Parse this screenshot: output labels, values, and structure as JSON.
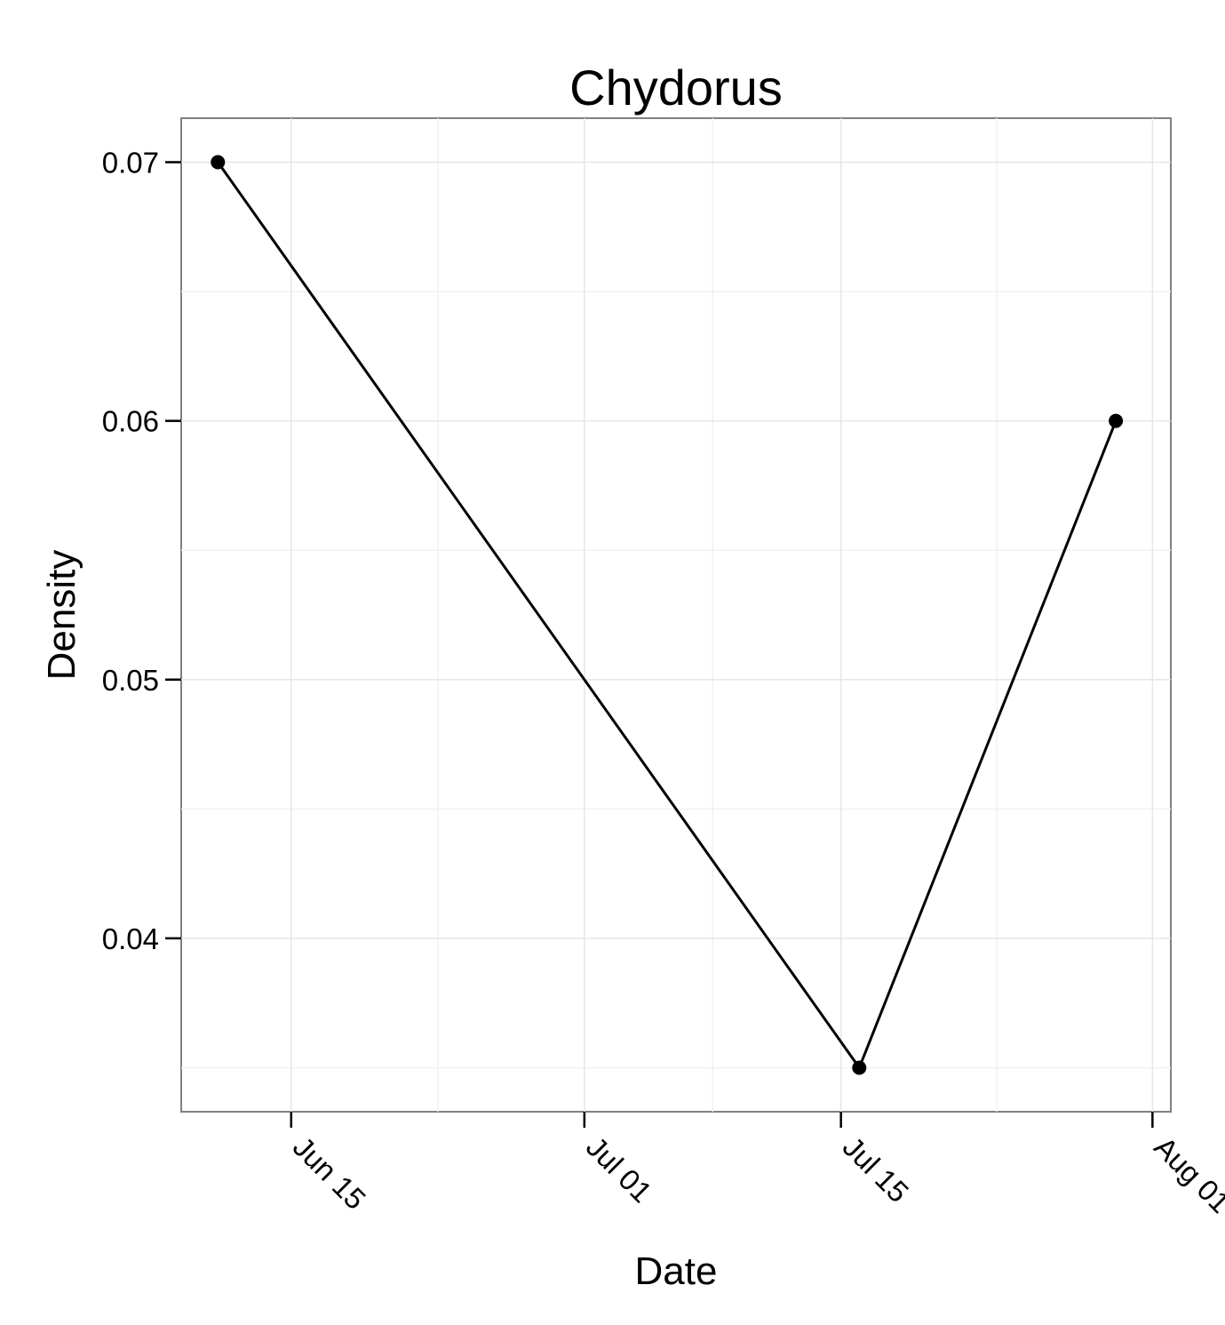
{
  "chart_data": {
    "type": "line",
    "title": "Chydorus",
    "xlabel": "Date",
    "ylabel": "Density",
    "x_axis_type": "date",
    "xlim": [
      "2011-06-09",
      "2011-08-02"
    ],
    "ylim": [
      0.0333,
      0.0717
    ],
    "x_ticks": [
      {
        "date": "2011-06-15",
        "label": "Jun 15"
      },
      {
        "date": "2011-07-01",
        "label": "Jul 01"
      },
      {
        "date": "2011-07-15",
        "label": "Jul 15"
      },
      {
        "date": "2011-08-01",
        "label": "Aug 01"
      }
    ],
    "y_ticks": [
      {
        "value": 0.04,
        "label": "0.04"
      },
      {
        "value": 0.05,
        "label": "0.05"
      },
      {
        "value": 0.06,
        "label": "0.06"
      },
      {
        "value": 0.07,
        "label": "0.07"
      }
    ],
    "grid": true,
    "legend": "none",
    "series": [
      {
        "x": [
          "2011-06-11",
          "2011-07-16",
          "2011-07-30"
        ],
        "y": [
          0.07,
          0.035,
          0.06
        ],
        "color": "#000000",
        "markers": true
      }
    ]
  }
}
